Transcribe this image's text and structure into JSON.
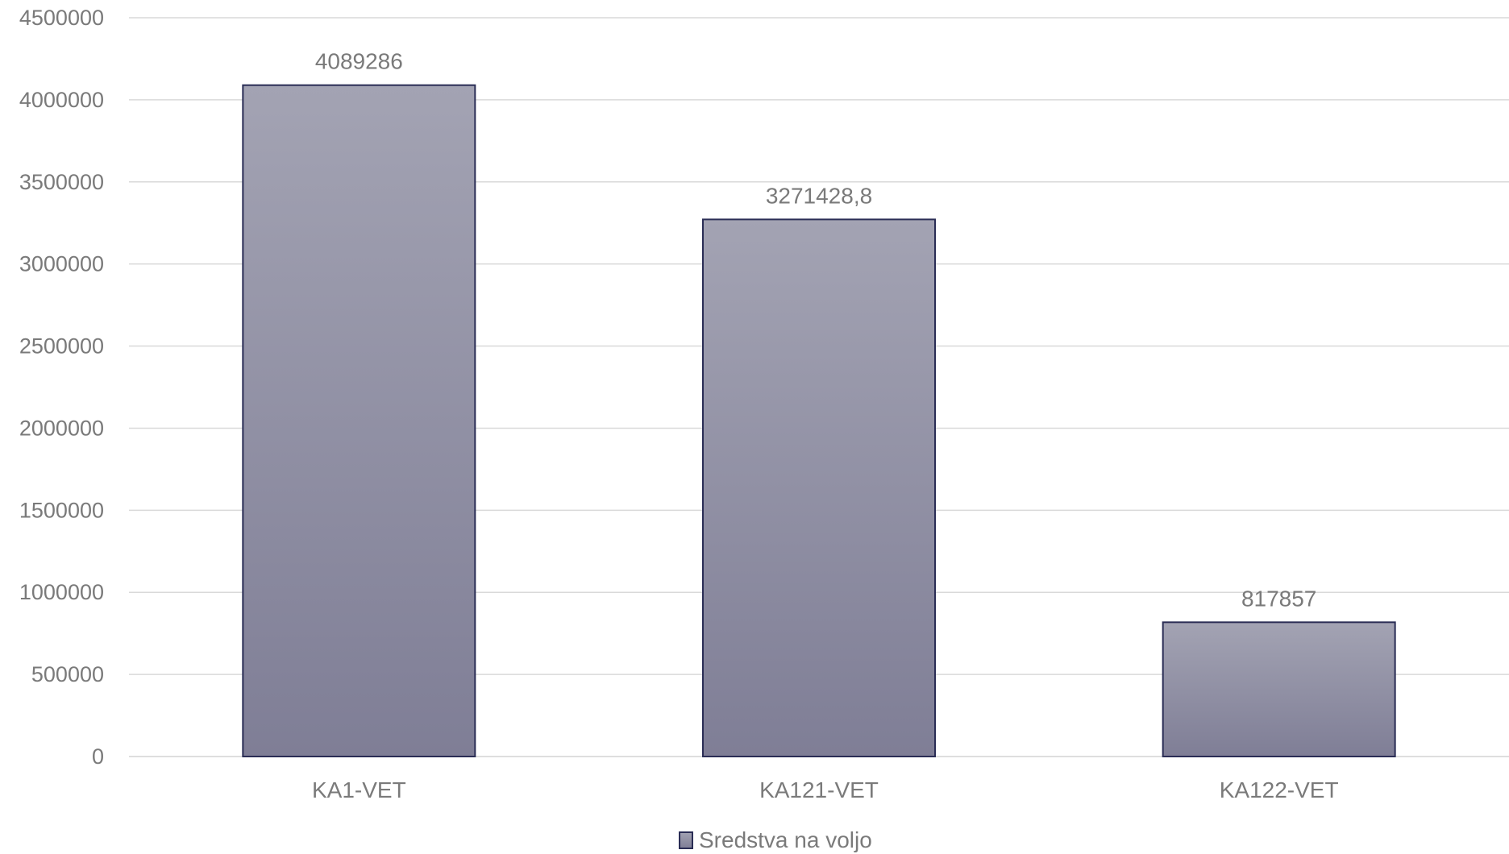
{
  "chart_data": {
    "type": "bar",
    "categories": [
      "KA1-VET",
      "KA121-VET",
      "KA122-VET"
    ],
    "series": [
      {
        "name": "Sredstva na voljo",
        "values": [
          4089286,
          3271428.8,
          817857
        ],
        "value_labels": [
          "4089286",
          "3271428,8",
          "817857"
        ]
      }
    ],
    "ylim": [
      0,
      4500000
    ],
    "yticks": [
      0,
      500000,
      1000000,
      1500000,
      2000000,
      2500000,
      3000000,
      3500000,
      4000000,
      4500000
    ],
    "ytick_labels": [
      "0",
      "500000",
      "1000000",
      "1500000",
      "2000000",
      "2500000",
      "3000000",
      "3500000",
      "4000000",
      "4500000"
    ],
    "grid": true,
    "legend_position": "bottom",
    "colors": {
      "bar_top": "#a3a3b3",
      "bar_bottom": "#7f7e96",
      "bar_stroke": "#2a2d55",
      "grid": "#d9d9d9",
      "text": "#7a7a7a"
    }
  }
}
